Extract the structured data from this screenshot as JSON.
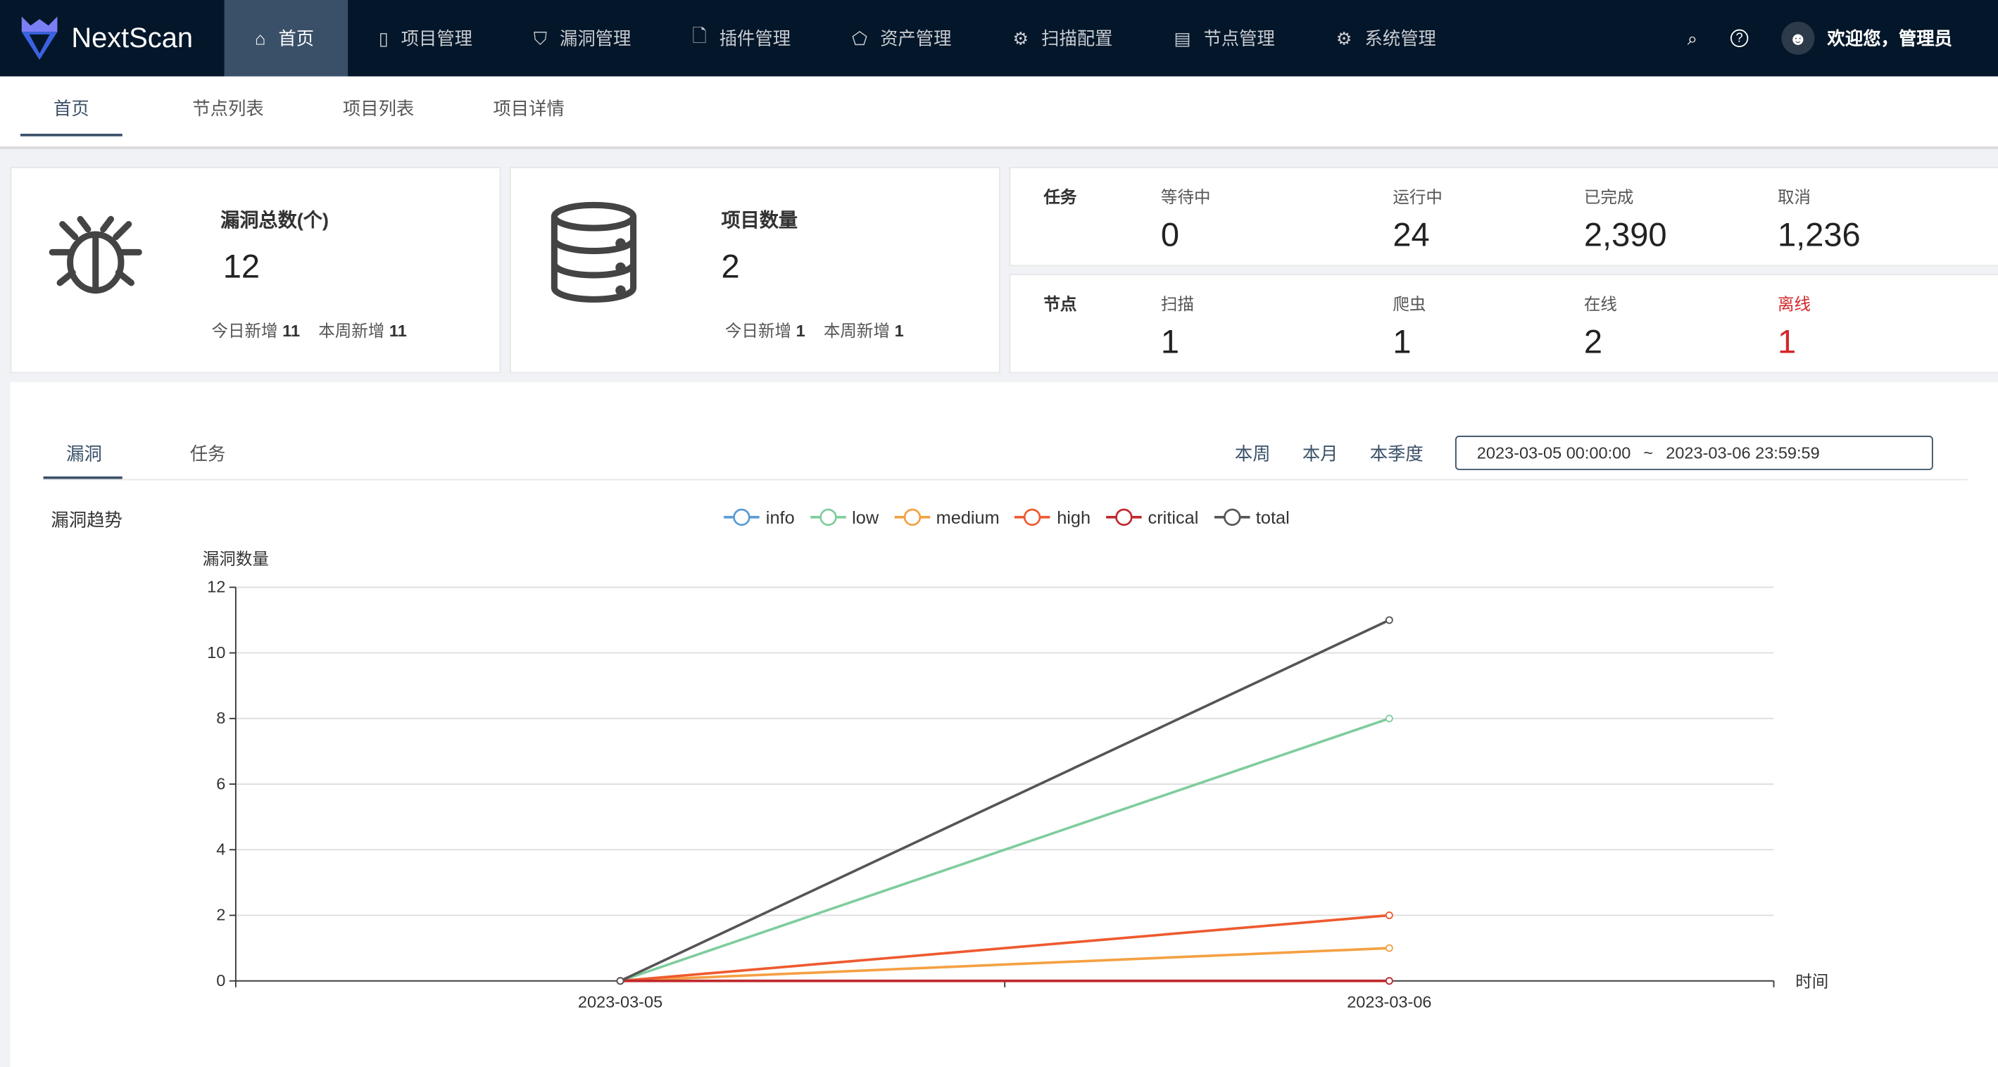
{
  "header": {
    "brand": "NextScan",
    "nav": [
      {
        "label": "首页",
        "icon": "home-icon"
      },
      {
        "label": "项目管理",
        "icon": "project-icon"
      },
      {
        "label": "漏洞管理",
        "icon": "shield-icon"
      },
      {
        "label": "插件管理",
        "icon": "plugin-icon"
      },
      {
        "label": "资产管理",
        "icon": "asset-icon"
      },
      {
        "label": "扫描配置",
        "icon": "gear-icon"
      },
      {
        "label": "节点管理",
        "icon": "server-icon"
      },
      {
        "label": "系统管理",
        "icon": "gear-icon"
      }
    ],
    "welcome": "欢迎您，管理员"
  },
  "subtabs": [
    "首页",
    "节点列表",
    "项目列表",
    "项目详情"
  ],
  "vuln_card": {
    "title": "漏洞总数(个)",
    "value": "12",
    "today_label": "今日新增",
    "today": "11",
    "week_label": "本周新增",
    "week": "11"
  },
  "project_card": {
    "title": "项目数量",
    "value": "2",
    "today_label": "今日新增",
    "today": "1",
    "week_label": "本周新增",
    "week": "1"
  },
  "tasks": {
    "label": "任务",
    "items": [
      {
        "label": "等待中",
        "value": "0"
      },
      {
        "label": "运行中",
        "value": "24"
      },
      {
        "label": "已完成",
        "value": "2,390"
      },
      {
        "label": "取消",
        "value": "1,236"
      }
    ]
  },
  "nodes": {
    "label": "节点",
    "items": [
      {
        "label": "扫描",
        "value": "1"
      },
      {
        "label": "爬虫",
        "value": "1"
      },
      {
        "label": "在线",
        "value": "2"
      },
      {
        "label": "离线",
        "value": "1"
      }
    ]
  },
  "panel": {
    "tabs": [
      "漏洞",
      "任务"
    ],
    "ranges": [
      "本周",
      "本月",
      "本季度"
    ],
    "date_start": "2023-03-05 00:00:00",
    "date_sep": "~",
    "date_end": "2023-03-06 23:59:59"
  },
  "chart_data": {
    "type": "line",
    "title": "漏洞趋势",
    "ylabel": "漏洞数量",
    "xlabel": "时间",
    "categories": [
      "2023-03-05",
      "2023-03-06"
    ],
    "ylim": [
      0,
      12
    ],
    "yticks": [
      0,
      2,
      4,
      6,
      8,
      10,
      12
    ],
    "grid": true,
    "legend": "top-center",
    "series": [
      {
        "name": "info",
        "color": "#5b9bd5",
        "values": [
          0,
          0
        ]
      },
      {
        "name": "low",
        "color": "#7fcd9d",
        "values": [
          0,
          8
        ]
      },
      {
        "name": "medium",
        "color": "#f5a043",
        "values": [
          0,
          1
        ]
      },
      {
        "name": "high",
        "color": "#ee5a2f",
        "values": [
          0,
          2
        ]
      },
      {
        "name": "critical",
        "color": "#c0282c",
        "values": [
          0,
          0
        ]
      },
      {
        "name": "total",
        "color": "#555555",
        "values": [
          0,
          11
        ]
      }
    ]
  }
}
